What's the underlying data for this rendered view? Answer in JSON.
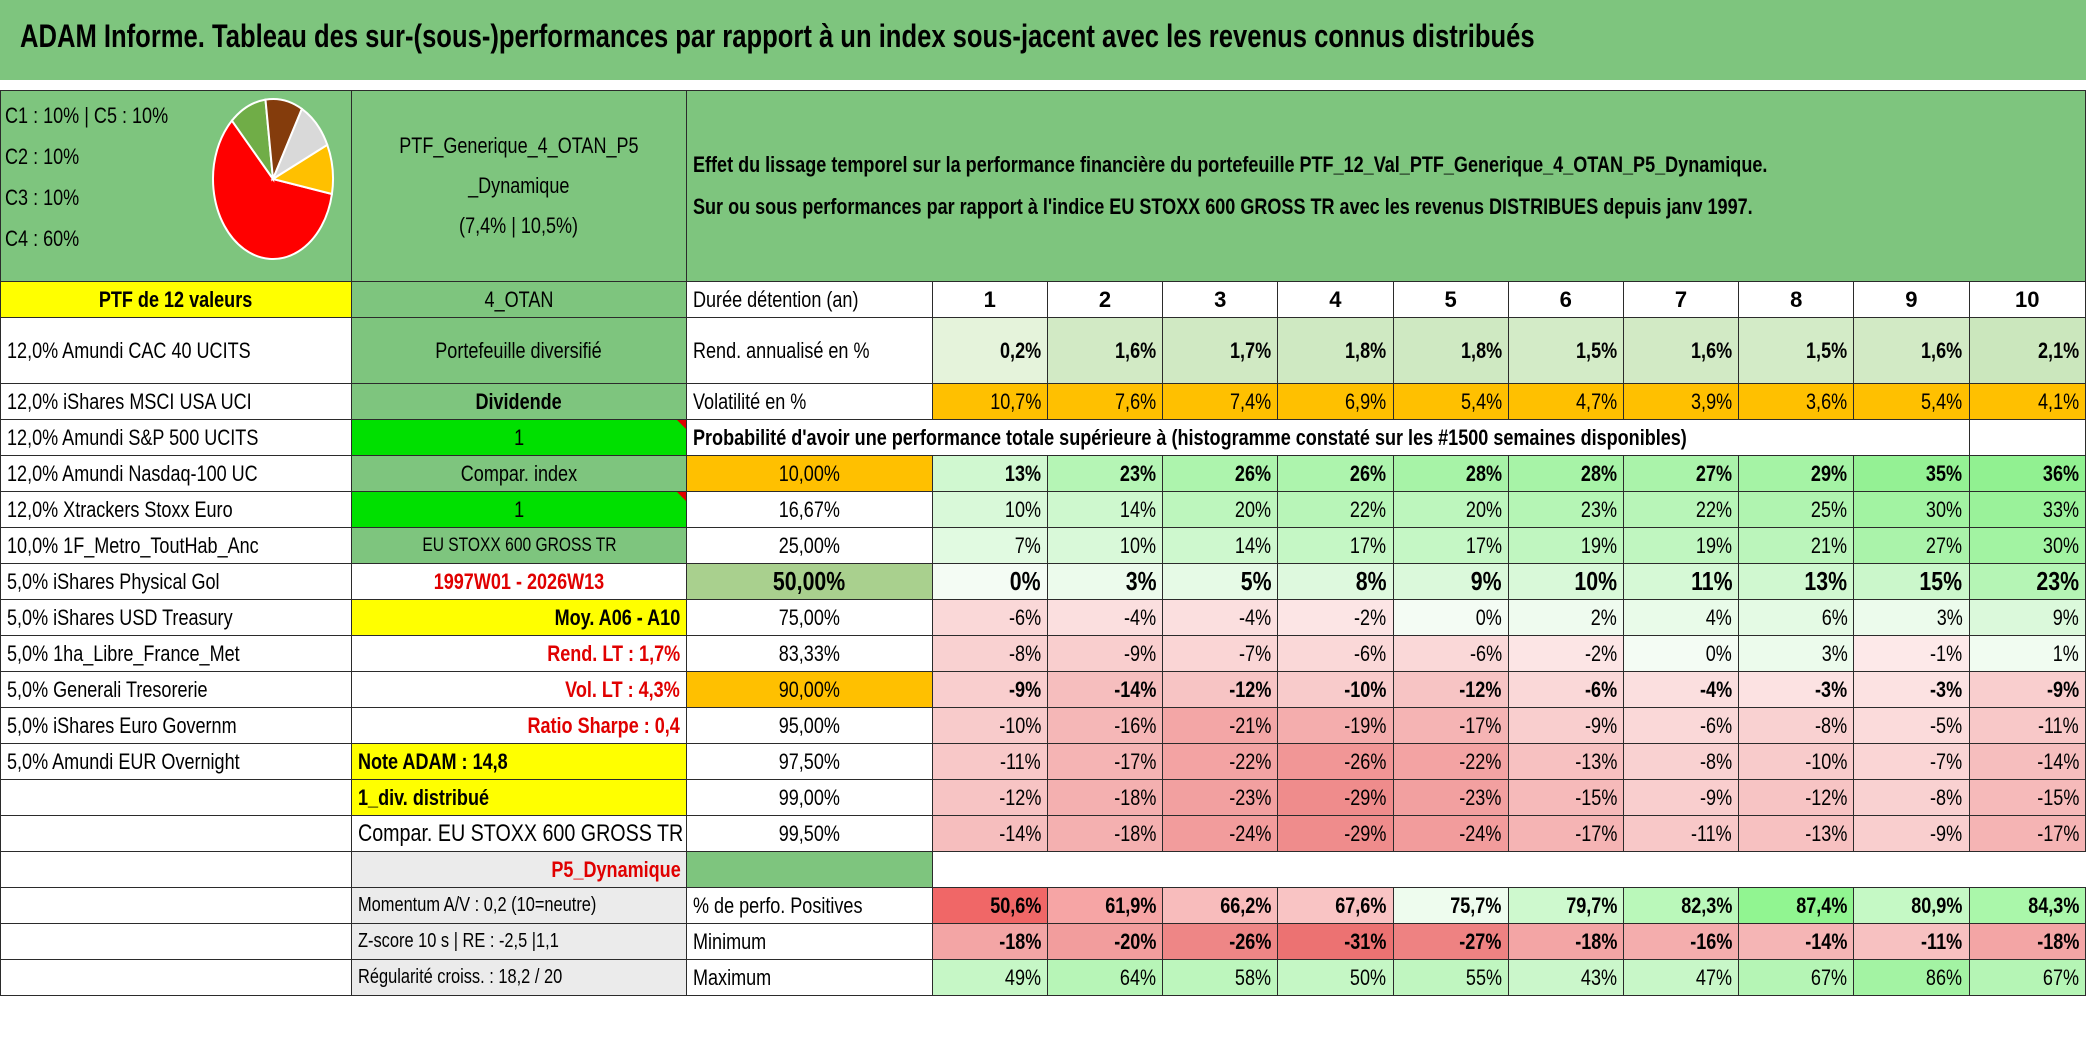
{
  "title": "ADAM Informe. Tableau des sur-(sous-)performances par rapport à un index sous-jacent avec les revenus connus distribués",
  "legend": {
    "lines": [
      "C1 : 10% | C5 : 10%",
      "C2 : 10%",
      "C3 : 10%",
      "C4 : 60%"
    ],
    "pie_slices": [
      {
        "label": "C4",
        "value": 60,
        "color": "#ff0000"
      },
      {
        "label": "C3",
        "value": 10,
        "color": "#70ad47"
      },
      {
        "label": "C2",
        "value": 10,
        "color": "#843c0c"
      },
      {
        "label": "C1",
        "value": 10,
        "color": "#d9d9d9"
      },
      {
        "label": "C5",
        "value": 10,
        "color": "#ffc000"
      }
    ]
  },
  "portfolio": {
    "name_line1": "PTF_Generique_4_OTAN_P5",
    "name_line2": "_Dynamique",
    "name_line3": "(7,4% | 10,5%)"
  },
  "effet": {
    "line1": "Effet du lissage temporel sur la performance financière du portefeuille PTF_12_Val_PTF_Generique_4_OTAN_P5_Dynamique.",
    "line2": "Sur ou sous performances par rapport à l'indice EU STOXX 600 GROSS TR avec les revenus DISTRIBUES depuis janv 1997."
  },
  "ptf_header": "PTF de 12 valeurs",
  "holdings": [
    "12,0% Amundi CAC 40 UCITS",
    "12,0% iShares MSCI USA UCI",
    "12,0% Amundi S&P 500 UCITS",
    "12,0% Amundi Nasdaq-100 UC",
    "12,0% Xtrackers Stoxx Euro",
    "10,0% 1F_Metro_ToutHab_Anc",
    "5,0% iShares Physical Gol",
    "5,0% iShares USD Treasury",
    "5,0% 1ha_Libre_France_Met",
    "5,0% Generali Tresorerie",
    "5,0% iShares Euro Governm",
    "5,0% Amundi EUR Overnight"
  ],
  "info": {
    "otan": "4_OTAN",
    "diversifie": "Portefeuille diversifié",
    "dividende": "Dividende",
    "one_a": "1",
    "compar_index": "Compar. index",
    "one_b": "1",
    "index_name": "EU STOXX 600 GROSS TR",
    "period": "1997W01 - 2026W13",
    "moy": "Moy. A06 - A10",
    "rend_lt": "Rend. LT : 1,7%",
    "vol_lt": "Vol. LT : 4,3%",
    "sharpe": "Ratio Sharpe : 0,4",
    "note": "Note ADAM : 14,8",
    "div": "1_div. distribué",
    "compar_eu": "Compar. EU STOXX 600 GROSS TR",
    "profile": "P5_Dynamique",
    "momentum": "Momentum A/V : 0,2 (10=neutre)",
    "zscore": "Z-score 10 s | RE : -2,5 |1,1",
    "regularite": "Régularité croiss. : 18,2 / 20"
  },
  "table": {
    "duree_label": "Durée détention (an)",
    "years": [
      "1",
      "2",
      "3",
      "4",
      "5",
      "6",
      "7",
      "8",
      "9",
      "10"
    ],
    "rend_label": "Rend. annualisé en %",
    "rend": [
      "0,2%",
      "1,6%",
      "1,7%",
      "1,8%",
      "1,8%",
      "1,5%",
      "1,6%",
      "1,5%",
      "1,6%",
      "2,1%"
    ],
    "vol_label": "Volatilité en %",
    "vol": [
      "10,7%",
      "7,6%",
      "7,4%",
      "6,9%",
      "5,4%",
      "4,7%",
      "3,9%",
      "3,6%",
      "5,4%",
      "4,1%"
    ],
    "proba_label": "Probabilité d'avoir une performance totale supérieure à (histogramme constaté sur les #1500 semaines disponibles)",
    "quantiles": [
      {
        "p": "10,00%",
        "v": [
          "13%",
          "23%",
          "26%",
          "26%",
          "28%",
          "28%",
          "27%",
          "29%",
          "35%",
          "36%"
        ]
      },
      {
        "p": "16,67%",
        "v": [
          "10%",
          "14%",
          "20%",
          "22%",
          "20%",
          "23%",
          "22%",
          "25%",
          "30%",
          "33%"
        ]
      },
      {
        "p": "25,00%",
        "v": [
          "7%",
          "10%",
          "14%",
          "17%",
          "17%",
          "19%",
          "19%",
          "21%",
          "27%",
          "30%"
        ]
      },
      {
        "p": "50,00%",
        "v": [
          "0%",
          "3%",
          "5%",
          "8%",
          "9%",
          "10%",
          "11%",
          "13%",
          "15%",
          "23%"
        ]
      },
      {
        "p": "75,00%",
        "v": [
          "-6%",
          "-4%",
          "-4%",
          "-2%",
          "0%",
          "2%",
          "4%",
          "6%",
          "3%",
          "9%"
        ]
      },
      {
        "p": "83,33%",
        "v": [
          "-8%",
          "-9%",
          "-7%",
          "-6%",
          "-6%",
          "-2%",
          "0%",
          "3%",
          "-1%",
          "1%"
        ]
      },
      {
        "p": "90,00%",
        "v": [
          "-9%",
          "-14%",
          "-12%",
          "-10%",
          "-12%",
          "-6%",
          "-4%",
          "-3%",
          "-3%",
          "-9%"
        ]
      },
      {
        "p": "95,00%",
        "v": [
          "-10%",
          "-16%",
          "-21%",
          "-19%",
          "-17%",
          "-9%",
          "-6%",
          "-8%",
          "-5%",
          "-11%"
        ]
      },
      {
        "p": "97,50%",
        "v": [
          "-11%",
          "-17%",
          "-22%",
          "-26%",
          "-22%",
          "-13%",
          "-8%",
          "-10%",
          "-7%",
          "-14%"
        ]
      },
      {
        "p": "99,00%",
        "v": [
          "-12%",
          "-18%",
          "-23%",
          "-29%",
          "-23%",
          "-15%",
          "-9%",
          "-12%",
          "-8%",
          "-15%"
        ]
      },
      {
        "p": "99,50%",
        "v": [
          "-14%",
          "-18%",
          "-24%",
          "-29%",
          "-24%",
          "-17%",
          "-11%",
          "-13%",
          "-9%",
          "-17%"
        ]
      }
    ],
    "pos_label": "% de perfo. Positives",
    "pos": [
      "50,6%",
      "61,9%",
      "66,2%",
      "67,6%",
      "75,7%",
      "79,7%",
      "82,3%",
      "87,4%",
      "80,9%",
      "84,3%"
    ],
    "min_label": "Minimum",
    "min": [
      "-18%",
      "-20%",
      "-26%",
      "-31%",
      "-27%",
      "-18%",
      "-16%",
      "-14%",
      "-11%",
      "-18%"
    ],
    "max_label": "Maximum",
    "max": [
      "49%",
      "64%",
      "58%",
      "50%",
      "55%",
      "43%",
      "47%",
      "67%",
      "86%",
      "67%"
    ]
  },
  "colors": {
    "header_green": "#7ec57e",
    "yellow": "#ffff00",
    "orange": "#ffc000",
    "bright_green": "#00e000",
    "red_text": "#e00000"
  }
}
